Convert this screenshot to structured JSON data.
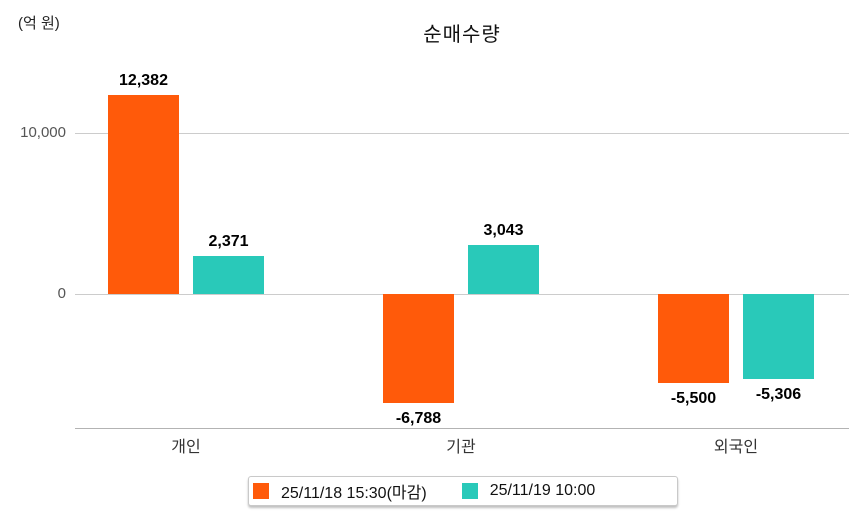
{
  "page": {
    "background": "#ffffff"
  },
  "chart_data": {
    "type": "bar",
    "title": "순매수량",
    "unit_label": "(억 원)",
    "categories": [
      "개인",
      "기관",
      "외국인"
    ],
    "series": [
      {
        "name": "25/11/18 15:30(마감)",
        "color": "#ff5a0a",
        "values": [
          12382,
          -6788,
          -5500
        ],
        "value_labels": [
          "12,382",
          "-6,788",
          "-5,500"
        ]
      },
      {
        "name": "25/11/19 10:00",
        "color": "#29c9b9",
        "values": [
          2371,
          3043,
          -5306
        ],
        "value_labels": [
          "2,371",
          "3,043",
          "-5,306"
        ]
      }
    ],
    "yticks": [
      {
        "value": 10000,
        "label": "10,000"
      },
      {
        "value": 0,
        "label": "0"
      }
    ],
    "ylim": [
      -8400,
      13600
    ],
    "grid": "horizontal",
    "legend_position": "bottom",
    "colors": {
      "gridline": "#cccccc",
      "axis_line": "#b3b3b3",
      "tick_label": "#555555",
      "category_label": "#333333",
      "value_label": "#000000"
    }
  }
}
